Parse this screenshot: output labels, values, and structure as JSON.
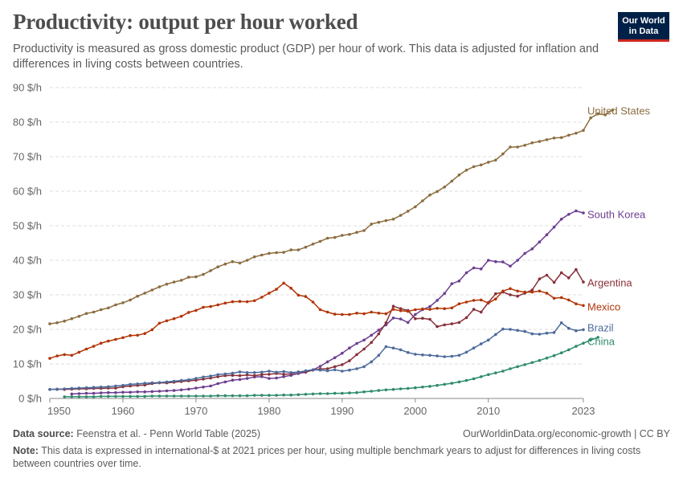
{
  "header": {
    "title": "Productivity: output per hour worked",
    "subtitle": "Productivity is measured as gross domestic product (GDP) per hour of work. This data is adjusted for inflation and differences in living costs between countries."
  },
  "logo": {
    "line1": "Our World",
    "line2": "in Data",
    "bg_color": "#002147",
    "accent_color": "#ce261e"
  },
  "footer": {
    "source_label": "Data source:",
    "source_text": "Feenstra et al. - Penn World Table (2025)",
    "url_text": "OurWorldinData.org/economic-growth | CC BY",
    "note_label": "Note:",
    "note_text": "This data is expressed in international-$ at 2021 prices per hour, using multiple benchmark years to adjust for differences in living costs between countries over time."
  },
  "chart_data": {
    "type": "line",
    "title": "Productivity: output per hour worked",
    "xlabel": "",
    "ylabel": "",
    "xlim": [
      1950,
      2023
    ],
    "ylim": [
      0,
      90
    ],
    "y_ticks": [
      0,
      10,
      20,
      30,
      40,
      50,
      60,
      70,
      80,
      90
    ],
    "y_tick_labels": [
      "0 $/h",
      "10 $/h",
      "20 $/h",
      "30 $/h",
      "40 $/h",
      "50 $/h",
      "60 $/h",
      "70 $/h",
      "80 $/h",
      "90 $/h"
    ],
    "x_ticks": [
      1950,
      1960,
      1970,
      1980,
      1990,
      2000,
      2010,
      2023
    ],
    "x_tick_labels": [
      "1950",
      "1960",
      "1970",
      "1980",
      "1990",
      "2000",
      "2010",
      "2023"
    ],
    "grid": "horizontal dashed",
    "legend": "line-end labels",
    "series": [
      {
        "name": "United States",
        "color": "#8c6d3f",
        "start": 1950,
        "values": [
          21.6,
          21.9,
          22.4,
          23.1,
          23.8,
          24.6,
          25.0,
          25.7,
          26.2,
          27.1,
          27.7,
          28.5,
          29.6,
          30.5,
          31.4,
          32.3,
          33.1,
          33.7,
          34.2,
          35.1,
          35.2,
          35.9,
          37.0,
          38.1,
          38.9,
          39.6,
          39.2,
          40.0,
          41.0,
          41.5,
          42.0,
          42.2,
          42.3,
          43.0,
          43.0,
          43.8,
          44.7,
          45.5,
          46.4,
          46.6,
          47.2,
          47.5,
          48.1,
          48.6,
          50.5,
          51.0,
          51.5,
          51.9,
          53.0,
          54.2,
          55.5,
          57.2,
          58.9,
          59.9,
          61.2,
          62.9,
          64.7,
          66.1,
          67.1,
          67.6,
          68.4,
          69.0,
          70.8,
          72.8,
          72.8,
          73.3,
          74.0,
          74.4,
          74.9,
          75.4,
          75.5,
          76.2,
          76.8,
          77.6,
          81.2,
          82.4,
          82.1,
          83.5
        ]
      },
      {
        "name": "South Korea",
        "color": "#6d3e91",
        "start": 1953,
        "values": [
          1.3,
          1.4,
          1.5,
          1.5,
          1.6,
          1.7,
          1.7,
          1.8,
          1.8,
          1.9,
          1.9,
          2.0,
          2.1,
          2.2,
          2.3,
          2.5,
          2.7,
          3.0,
          3.3,
          3.6,
          4.3,
          4.8,
          5.3,
          5.5,
          5.8,
          6.2,
          6.3,
          5.8,
          5.9,
          6.3,
          6.7,
          7.2,
          7.6,
          8.3,
          9.3,
          10.6,
          11.8,
          13.1,
          14.6,
          15.9,
          16.9,
          18.3,
          19.8,
          21.3,
          23.3,
          23.0,
          22.0,
          24.3,
          25.7,
          26.6,
          28.4,
          30.4,
          33.2,
          34.0,
          36.4,
          37.8,
          37.5,
          40.0,
          39.6,
          39.5,
          38.3,
          40.0,
          42.0,
          43.3,
          45.3,
          47.4,
          49.6,
          51.9,
          53.3,
          54.3,
          53.7
        ]
      },
      {
        "name": "Argentina",
        "color": "#883039",
        "start": 1950,
        "values": [
          2.6,
          2.7,
          2.6,
          2.7,
          2.8,
          2.8,
          2.9,
          2.9,
          3.0,
          3.0,
          3.4,
          3.6,
          3.8,
          3.9,
          4.3,
          4.5,
          4.5,
          4.7,
          4.9,
          5.1,
          5.3,
          5.6,
          5.9,
          6.3,
          6.6,
          6.7,
          6.6,
          6.8,
          6.6,
          6.9,
          7.0,
          7.2,
          7.0,
          7.1,
          7.7,
          7.6,
          8.2,
          8.5,
          8.6,
          9.2,
          9.8,
          10.9,
          12.7,
          14.3,
          16.2,
          18.7,
          21.9,
          26.7,
          26.0,
          25.5,
          23.1,
          23.2,
          22.9,
          20.8,
          21.3,
          21.6,
          22.0,
          23.4,
          25.8,
          25.0,
          27.8,
          30.3,
          30.8,
          30.0,
          29.6,
          30.5,
          31.4,
          34.6,
          35.7,
          33.6,
          36.4,
          34.9,
          37.3,
          33.7
        ]
      },
      {
        "name": "Mexico",
        "color": "#b13507",
        "start": 1950,
        "values": [
          11.6,
          12.3,
          12.7,
          12.5,
          13.4,
          14.3,
          15.1,
          16.0,
          16.6,
          17.1,
          17.6,
          18.2,
          18.3,
          18.8,
          19.9,
          21.8,
          22.5,
          23.1,
          23.8,
          24.9,
          25.5,
          26.4,
          26.6,
          27.1,
          27.6,
          28.0,
          28.1,
          28.0,
          28.3,
          29.3,
          30.5,
          31.6,
          33.4,
          31.9,
          29.9,
          29.5,
          27.9,
          25.7,
          25.0,
          24.4,
          24.3,
          24.3,
          24.7,
          24.5,
          25.0,
          24.7,
          24.5,
          25.8,
          25.4,
          25.2,
          25.7,
          25.9,
          25.8,
          26.1,
          26.0,
          26.2,
          27.4,
          27.9,
          28.4,
          28.5,
          27.6,
          28.8,
          31.1,
          31.8,
          31.1,
          30.8,
          30.8,
          31.1,
          30.5,
          29.0,
          29.2,
          28.5,
          27.4,
          26.9
        ]
      },
      {
        "name": "Brazil",
        "color": "#4c6a9c",
        "start": 1950,
        "values": [
          2.6,
          2.6,
          2.8,
          2.9,
          3.0,
          3.1,
          3.2,
          3.3,
          3.4,
          3.6,
          3.8,
          4.1,
          4.2,
          4.4,
          4.5,
          4.6,
          4.8,
          5.0,
          5.2,
          5.4,
          5.8,
          6.2,
          6.5,
          6.9,
          7.1,
          7.3,
          7.7,
          7.5,
          7.5,
          7.6,
          7.9,
          7.6,
          7.8,
          7.5,
          7.6,
          8.0,
          8.3,
          8.2,
          8.0,
          8.3,
          7.9,
          8.2,
          8.6,
          9.2,
          10.6,
          12.5,
          15.0,
          14.6,
          14.1,
          13.3,
          12.8,
          12.6,
          12.5,
          12.3,
          12.1,
          12.2,
          12.5,
          13.4,
          14.6,
          15.8,
          16.9,
          18.5,
          20.1,
          20.0,
          19.7,
          19.4,
          18.7,
          18.6,
          18.9,
          19.1,
          21.9,
          20.3,
          19.6,
          19.9
        ]
      },
      {
        "name": "China",
        "color": "#2e8b6e",
        "start": 1952,
        "values": [
          0.5,
          0.5,
          0.5,
          0.5,
          0.5,
          0.6,
          0.6,
          0.6,
          0.6,
          0.6,
          0.6,
          0.6,
          0.7,
          0.7,
          0.7,
          0.7,
          0.7,
          0.7,
          0.7,
          0.7,
          0.7,
          0.8,
          0.8,
          0.8,
          0.8,
          0.8,
          0.9,
          0.9,
          0.9,
          0.9,
          1.0,
          1.0,
          1.1,
          1.2,
          1.3,
          1.4,
          1.4,
          1.5,
          1.5,
          1.6,
          1.7,
          1.9,
          2.1,
          2.3,
          2.5,
          2.6,
          2.8,
          2.9,
          3.1,
          3.3,
          3.5,
          3.8,
          4.1,
          4.4,
          4.8,
          5.2,
          5.7,
          6.3,
          6.9,
          7.4,
          7.9,
          8.6,
          9.2,
          9.8,
          10.4,
          11.0,
          11.7,
          12.4,
          13.2,
          14.1,
          15.1,
          16.0,
          16.9,
          17.7
        ]
      }
    ]
  }
}
